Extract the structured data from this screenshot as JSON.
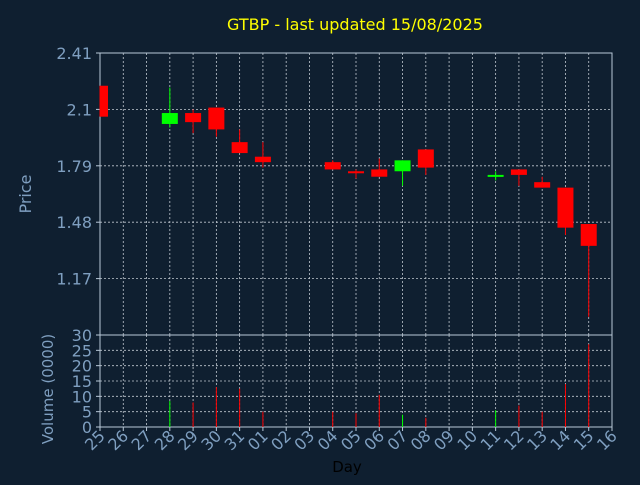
{
  "chart_data": {
    "type": "candlestick",
    "title": "GTBP - last updated 15/08/2025",
    "xlabel": "Day",
    "price_panel": {
      "ylabel": "Price",
      "yticks": [
        "2.41",
        "2.1",
        "1.79",
        "1.48",
        "1.17"
      ],
      "ytick_values": [
        2.41,
        2.1,
        1.79,
        1.48,
        1.17
      ],
      "ylim": [
        0.86,
        2.41
      ]
    },
    "volume_panel": {
      "ylabel": "Volume (0000)",
      "yticks": [
        "30",
        "25",
        "20",
        "15",
        "10",
        "5",
        "0"
      ],
      "ytick_values": [
        30,
        25,
        20,
        15,
        10,
        5,
        0
      ],
      "ylim": [
        0,
        30
      ]
    },
    "x_ticks": [
      "25",
      "26",
      "27",
      "28",
      "29",
      "30",
      "31",
      "01",
      "02",
      "03",
      "04",
      "05",
      "06",
      "07",
      "08",
      "09",
      "10",
      "11",
      "12",
      "13",
      "14",
      "15",
      "16"
    ],
    "candles": [
      {
        "day": "25",
        "open": 2.23,
        "high": 2.23,
        "low": 2.06,
        "close": 2.06,
        "volume": 0
      },
      {
        "day": "28",
        "open": 2.02,
        "high": 2.22,
        "low": 2.0,
        "close": 2.08,
        "volume": 8.5
      },
      {
        "day": "29",
        "open": 2.08,
        "high": 2.1,
        "low": 1.97,
        "close": 2.03,
        "volume": 8
      },
      {
        "day": "30",
        "open": 2.11,
        "high": 2.11,
        "low": 1.95,
        "close": 1.99,
        "volume": 13
      },
      {
        "day": "31",
        "open": 1.92,
        "high": 1.99,
        "low": 1.86,
        "close": 1.86,
        "volume": 12.5
      },
      {
        "day": "01",
        "open": 1.84,
        "high": 1.92,
        "low": 1.78,
        "close": 1.81,
        "volume": 5
      },
      {
        "day": "04",
        "open": 1.81,
        "high": 1.82,
        "low": 1.77,
        "close": 1.77,
        "volume": 5
      },
      {
        "day": "05",
        "open": 1.76,
        "high": 1.77,
        "low": 1.72,
        "close": 1.75,
        "volume": 4.5
      },
      {
        "day": "06",
        "open": 1.77,
        "high": 1.83,
        "low": 1.73,
        "close": 1.73,
        "volume": 10.5
      },
      {
        "day": "07",
        "open": 1.76,
        "high": 1.82,
        "low": 1.68,
        "close": 1.82,
        "volume": 4
      },
      {
        "day": "08",
        "open": 1.88,
        "high": 1.88,
        "low": 1.74,
        "close": 1.78,
        "volume": 3
      },
      {
        "day": "11",
        "open": 1.73,
        "high": 1.76,
        "low": 1.71,
        "close": 1.74,
        "volume": 5.5
      },
      {
        "day": "12",
        "open": 1.77,
        "high": 1.77,
        "low": 1.68,
        "close": 1.74,
        "volume": 7
      },
      {
        "day": "13",
        "open": 1.7,
        "high": 1.73,
        "low": 1.67,
        "close": 1.67,
        "volume": 5
      },
      {
        "day": "14",
        "open": 1.67,
        "high": 1.67,
        "low": 1.41,
        "close": 1.45,
        "volume": 14
      },
      {
        "day": "15",
        "open": 1.47,
        "high": 1.47,
        "low": 0.96,
        "close": 1.35,
        "volume": 27
      }
    ],
    "colors": {
      "background": "#0f1f30",
      "axis": "#b8c8d8",
      "grid": "#c0c8d0",
      "tick_text": "#7f9fc0",
      "title": "#ffff00",
      "up": "#00ff00",
      "down": "#ff0000",
      "xlabel": "#000000"
    },
    "grid": true
  }
}
